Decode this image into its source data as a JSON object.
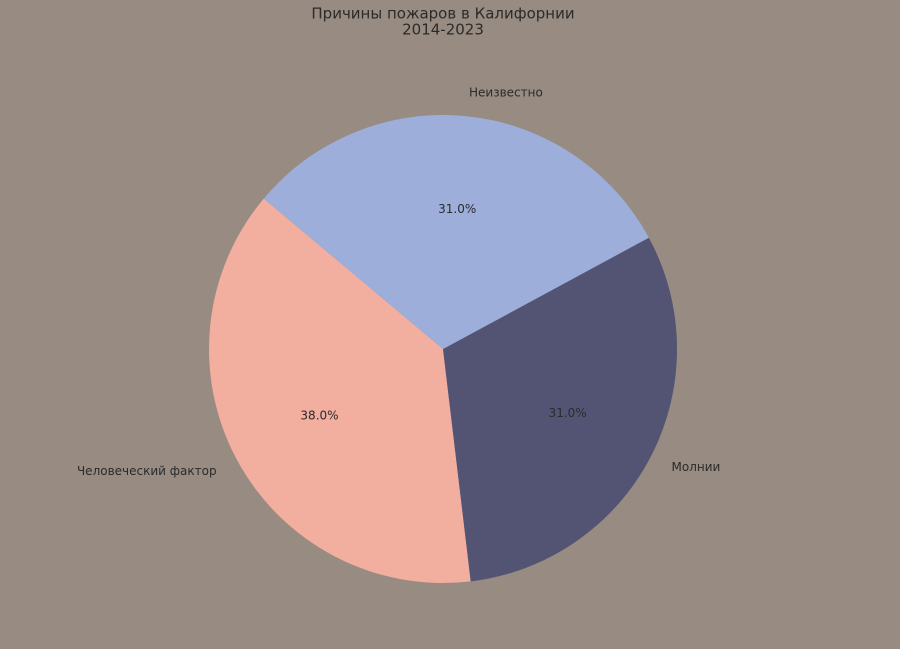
{
  "chart_data": {
    "type": "pie",
    "title": "Причины пожаров в Калифорнии",
    "subtitle": "2014-2023",
    "categories": [
      "Человеческий фактор",
      "Молнии",
      "Неизвестно"
    ],
    "values": [
      38,
      31,
      31
    ],
    "value_labels": [
      "38.0%",
      "31.0%",
      "31.0%"
    ],
    "colors": [
      "#f2ae9e",
      "#535474",
      "#9caed9"
    ],
    "startangle": 140
  }
}
